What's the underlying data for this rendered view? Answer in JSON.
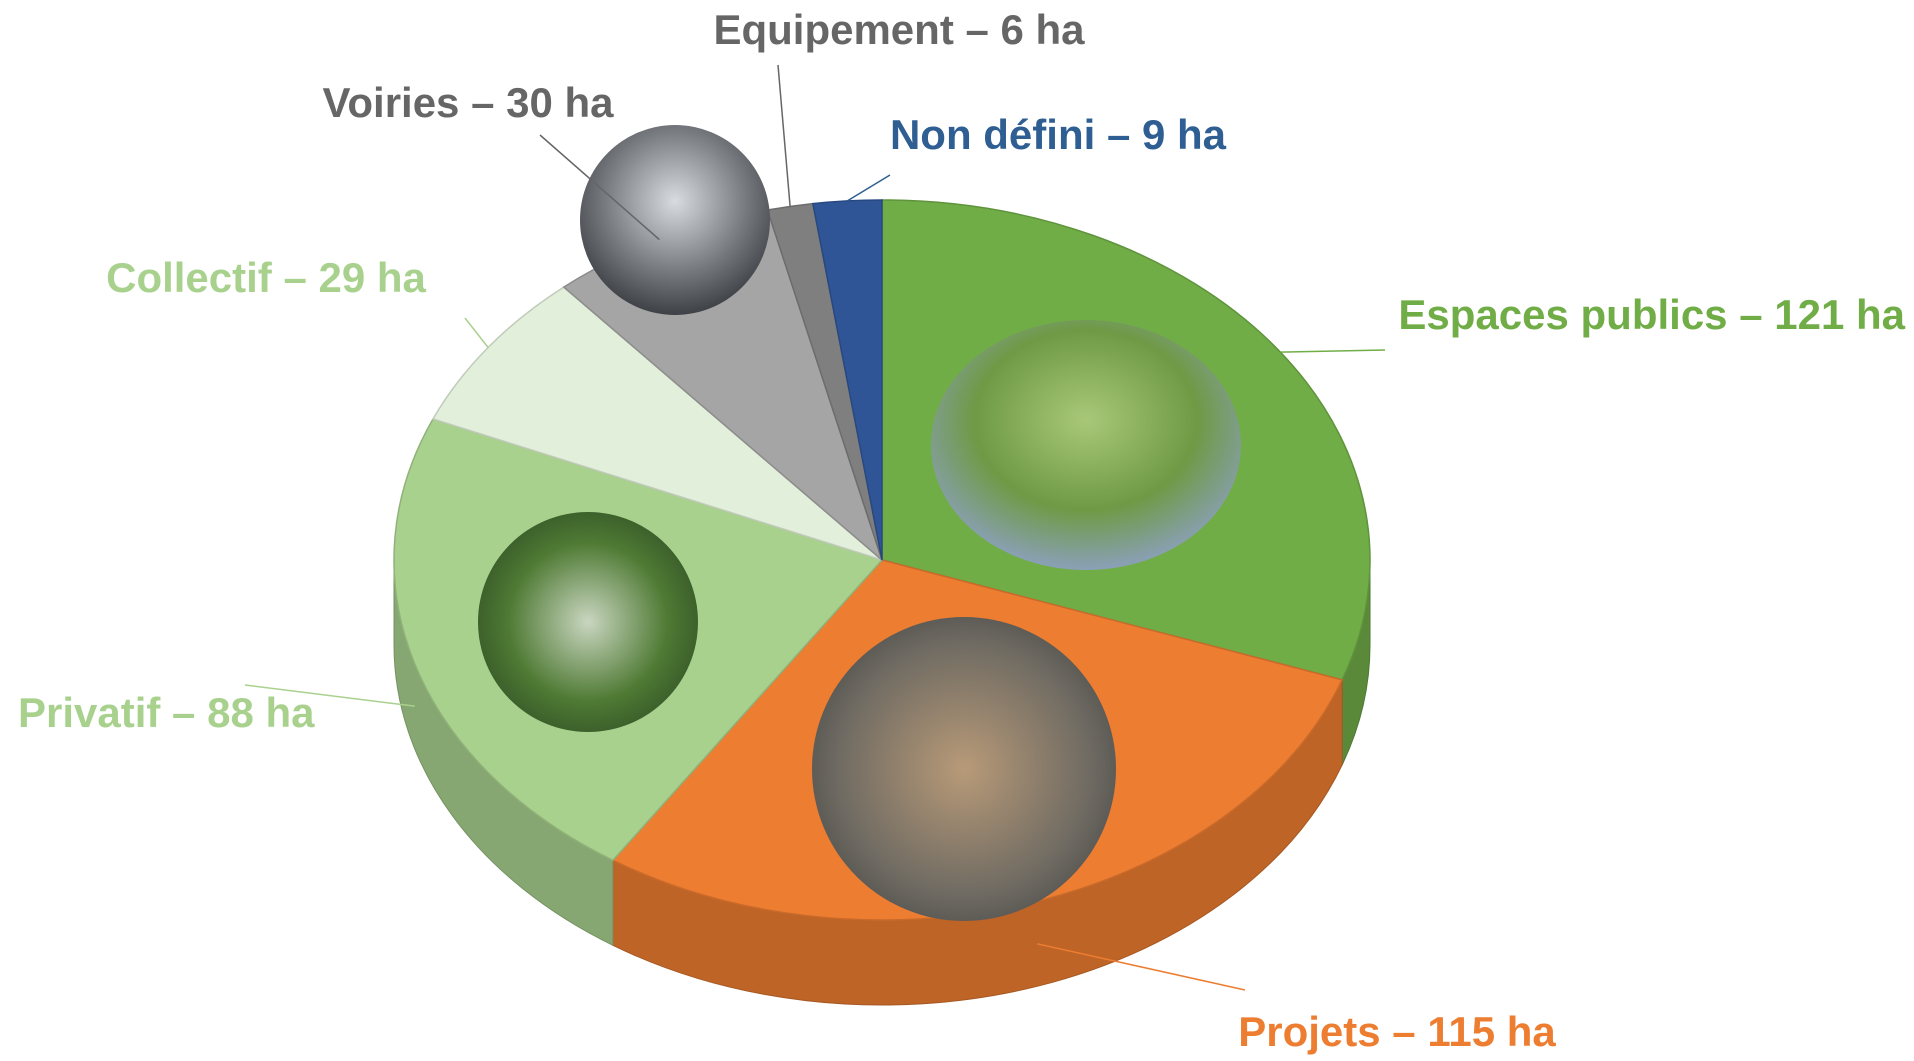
{
  "chart_data": {
    "type": "pie",
    "values": [
      121,
      115,
      88,
      29,
      30,
      6,
      9
    ],
    "value_labels": [
      "Espaces publics – 121 ha",
      "Projets – 115 ha",
      "Privatif – 88 ha",
      "Collectif – 29 ha",
      "Voiries – 30 ha",
      "Equipement – 6 ha",
      "Non défini – 9 ha"
    ],
    "colors": [
      "#70ad47",
      "#ed7d31",
      "#a9d18e",
      "#e2efda",
      "#a5a5a5",
      "#7f7f7f",
      "#2f5597"
    ],
    "label_colors": [
      "#70ad47",
      "#ed7d31",
      "#a9d18e",
      "#a9d18e",
      "#666666",
      "#666666",
      "#2e5e92"
    ],
    "three_d": true
  }
}
